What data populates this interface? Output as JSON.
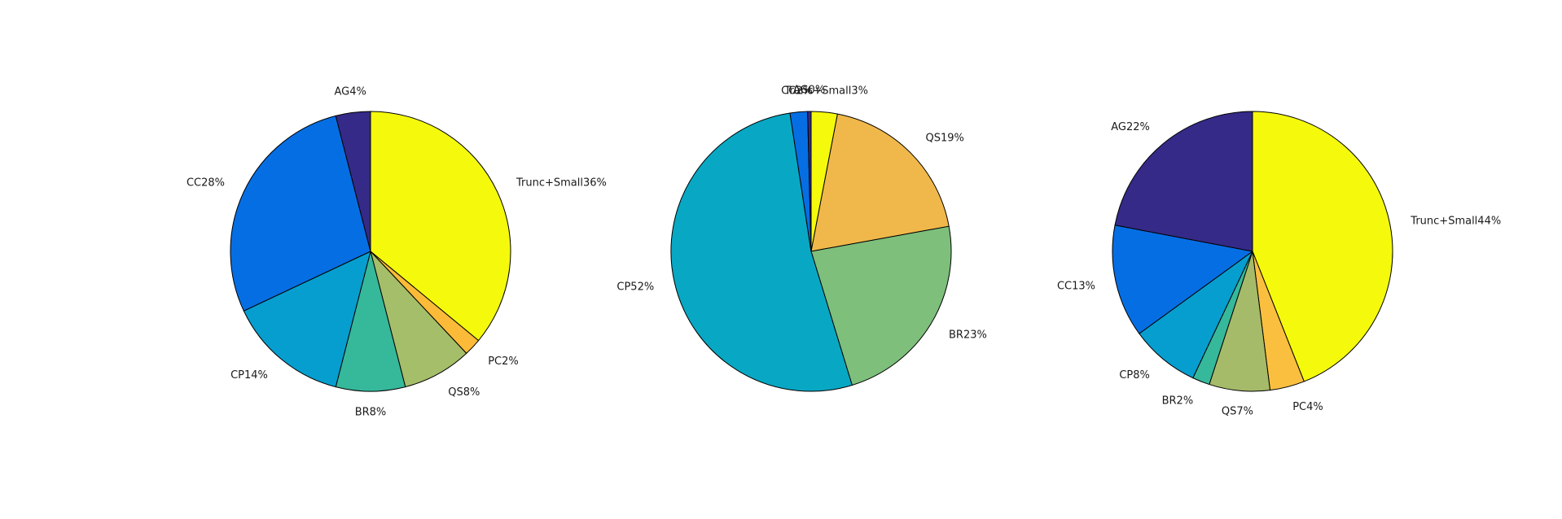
{
  "chart_data": [
    {
      "type": "pie",
      "title": "",
      "slices": [
        {
          "label": "Trunc+Small36%",
          "value": 36,
          "color": "#f5fa0d"
        },
        {
          "label": "PC2%",
          "value": 2,
          "color": "#fbbb38"
        },
        {
          "label": "QS8%",
          "value": 8,
          "color": "#a5be69"
        },
        {
          "label": "BR8%",
          "value": 8,
          "color": "#36b89b"
        },
        {
          "label": "CP14%",
          "value": 14,
          "color": "#069ecf"
        },
        {
          "label": "CC28%",
          "value": 28,
          "color": "#066ee3"
        },
        {
          "label": "AG4%",
          "value": 4,
          "color": "#352a87"
        }
      ]
    },
    {
      "type": "pie",
      "title": "",
      "slices": [
        {
          "label": "Trunc+Small3%",
          "value": 3,
          "color": "#f5fa0d"
        },
        {
          "label": "QS19%",
          "value": 19,
          "color": "#f0b84b"
        },
        {
          "label": "BR23%",
          "value": 23,
          "color": "#7dbf7b"
        },
        {
          "label": "CP52%",
          "value": 52,
          "color": "#08a8c4"
        },
        {
          "label": "CC2%",
          "value": 2,
          "color": "#066ee3"
        },
        {
          "label": "AG0%",
          "value": 0.4,
          "color": "#352a87"
        }
      ]
    },
    {
      "type": "pie",
      "title": "",
      "slices": [
        {
          "label": "Trunc+Small44%",
          "value": 44,
          "color": "#f5fa0d"
        },
        {
          "label": "PC4%",
          "value": 4,
          "color": "#fbbf40"
        },
        {
          "label": "QS7%",
          "value": 7,
          "color": "#a5bb69"
        },
        {
          "label": "BR2%",
          "value": 2,
          "color": "#36b89b"
        },
        {
          "label": "CP8%",
          "value": 8,
          "color": "#069ecf"
        },
        {
          "label": "CC13%",
          "value": 13,
          "color": "#066ee3"
        },
        {
          "label": "AG22%",
          "value": 22,
          "color": "#352a87"
        }
      ]
    }
  ]
}
